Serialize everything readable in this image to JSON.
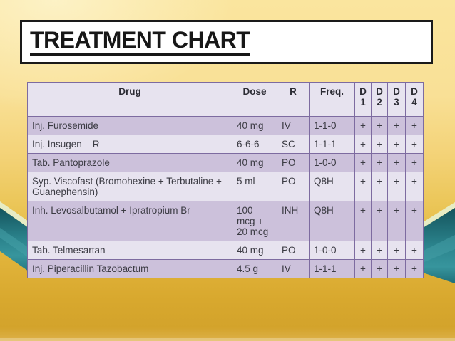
{
  "slide": {
    "title": "TREATMENT CHART"
  },
  "table": {
    "headers": {
      "drug": "Drug",
      "dose": "Dose",
      "route": "R",
      "freq": "Freq.",
      "days": [
        "D\n1",
        "D\n2",
        "D\n3",
        "D\n4"
      ]
    },
    "rows": [
      {
        "drug": "Inj. Furosemide",
        "dose": "40 mg",
        "route": "IV",
        "freq": "1-1-0",
        "days": [
          "+",
          "+",
          "+",
          "+"
        ]
      },
      {
        "drug": "Inj. Insugen – R",
        "dose": "6-6-6",
        "route": "SC",
        "freq": "1-1-1",
        "days": [
          "+",
          "+",
          "+",
          "+"
        ]
      },
      {
        "drug": "Tab. Pantoprazole",
        "dose": "40 mg",
        "route": "PO",
        "freq": "1-0-0",
        "days": [
          "+",
          "+",
          "+",
          "+"
        ]
      },
      {
        "drug": "Syp. Viscofast (Bromohexine + Terbutaline + Guanephensin)",
        "dose": "5 ml",
        "route": "PO",
        "freq": "Q8H",
        "days": [
          "+",
          "+",
          "+",
          "+"
        ]
      },
      {
        "drug": "Inh.  Levosalbutamol + Ipratropium Br",
        "dose": "100\nmcg +\n20 mcg",
        "route": "INH",
        "freq": "Q8H",
        "days": [
          "+",
          "+",
          "+",
          "+"
        ]
      },
      {
        "drug": "Tab. Telmesartan",
        "dose": "40 mg",
        "route": "PO",
        "freq": "1-0-0",
        "days": [
          "+",
          "+",
          "+",
          "+"
        ]
      },
      {
        "drug": "Inj. Piperacillin Tazobactum",
        "dose": "4.5 g",
        "route": "IV",
        "freq": "1-1-1",
        "days": [
          "+",
          "+",
          "+",
          "+"
        ]
      }
    ]
  },
  "colors": {
    "background_gold": "#E9C255",
    "ribbon_teal": "#2B838C",
    "ribbon_highlight": "#E7ECC4",
    "table_border": "#7D6BA0",
    "row_dark": "#CCC1DB",
    "row_light": "#E7E3EF",
    "title_text": "#171717"
  }
}
